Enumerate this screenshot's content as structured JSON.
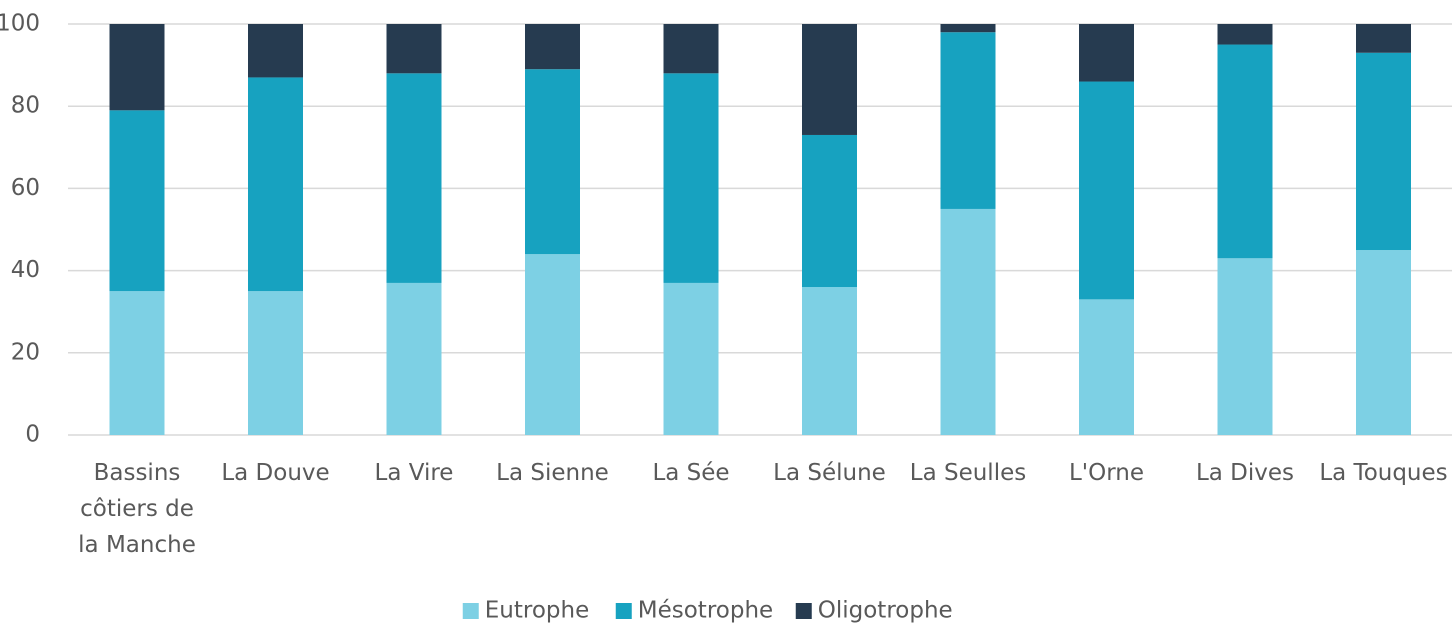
{
  "chart_data": {
    "type": "stacked_bar",
    "categories": [
      "Bassins côtiers de la Manche",
      "La Douve",
      "La Vire",
      "La Sienne",
      "La Sée",
      "La Sélune",
      "La Seulles",
      "L'Orne",
      "La Dives",
      "La Touques"
    ],
    "series": [
      {
        "name": "Eutrophe",
        "color": "#7dd0e4",
        "values": [
          35,
          35,
          37,
          44,
          37,
          36,
          55,
          33,
          43,
          45
        ]
      },
      {
        "name": "Mésotrophe",
        "color": "#17a2c0",
        "values": [
          44,
          52,
          51,
          45,
          51,
          37,
          43,
          53,
          52,
          48
        ]
      },
      {
        "name": "Oligotrophe",
        "color": "#263b50",
        "values": [
          21,
          13,
          12,
          11,
          12,
          27,
          2,
          14,
          5,
          7
        ]
      }
    ],
    "ylim": [
      0,
      100
    ],
    "yticks": [
      0,
      20,
      40,
      60,
      80,
      100
    ],
    "grid": true,
    "legend": "bottom"
  }
}
